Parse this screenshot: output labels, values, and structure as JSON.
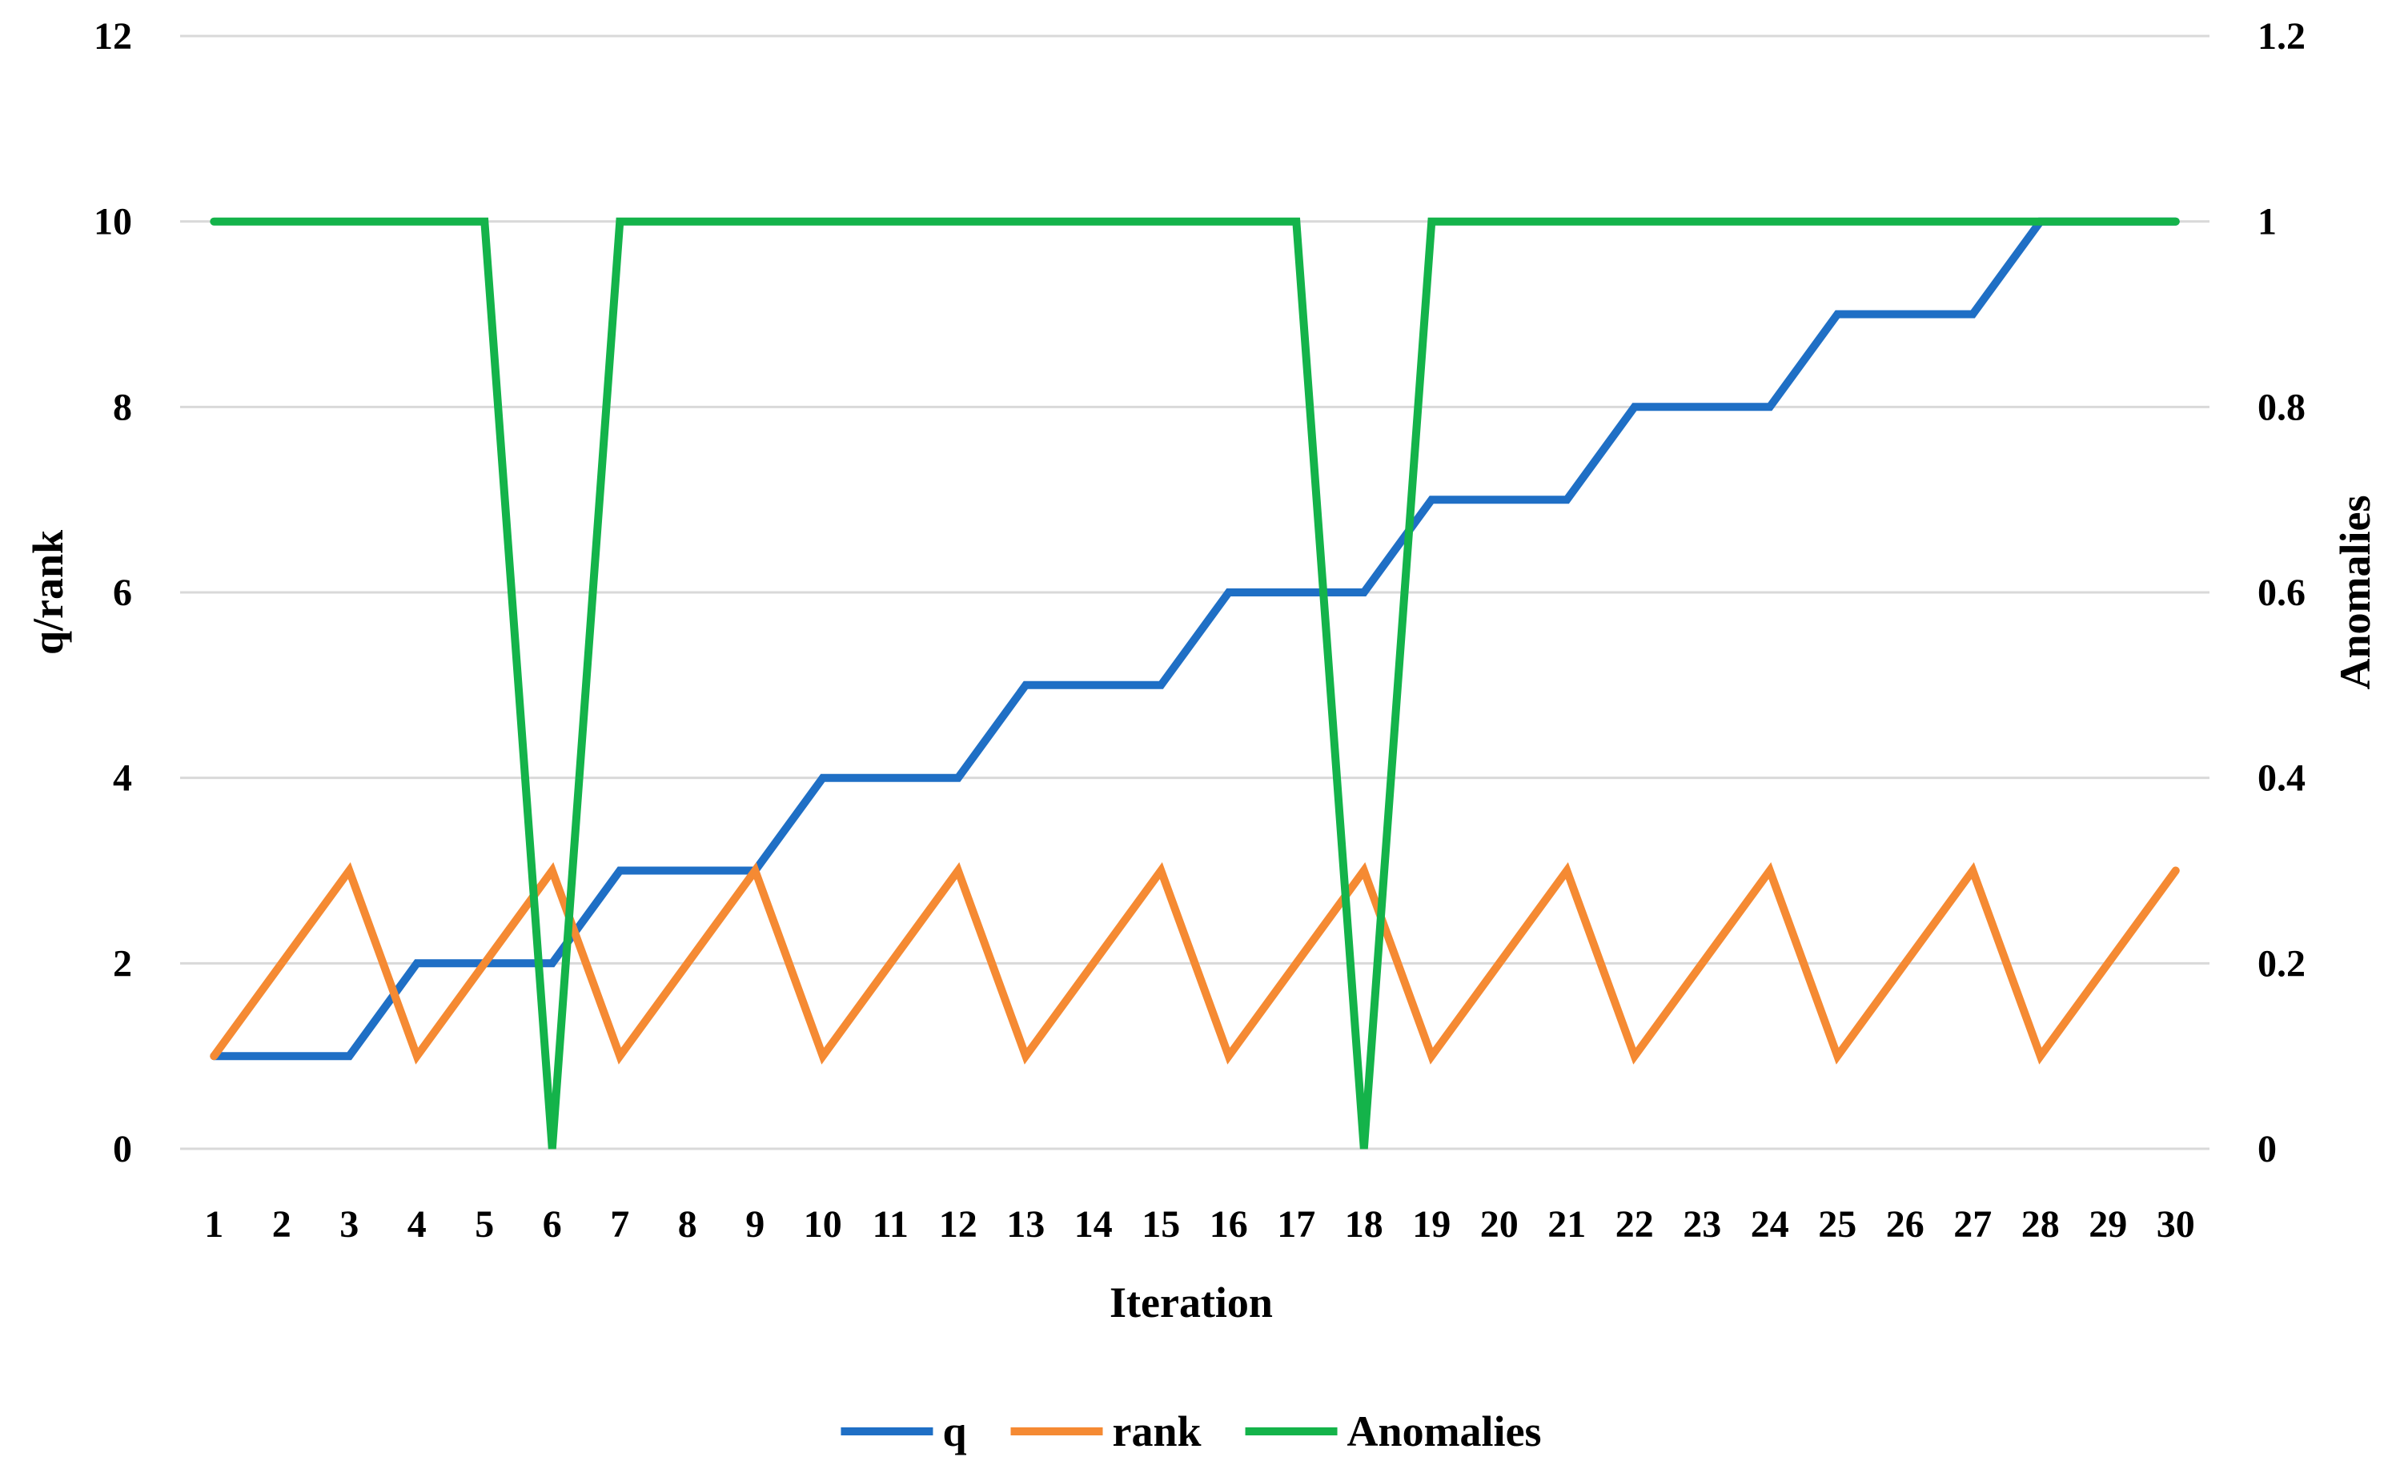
{
  "chart_data": {
    "type": "line",
    "x_label": "Iteration",
    "y_left_label": "q/rank",
    "y_right_label": "Anomalies",
    "categories": [
      1,
      2,
      3,
      4,
      5,
      6,
      7,
      8,
      9,
      10,
      11,
      12,
      13,
      14,
      15,
      16,
      17,
      18,
      19,
      20,
      21,
      22,
      23,
      24,
      25,
      26,
      27,
      28,
      29,
      30
    ],
    "y_left_range": [
      0,
      12
    ],
    "y_left_ticks": [
      0,
      2,
      4,
      6,
      8,
      10,
      12
    ],
    "y_right_range": [
      0,
      1.2
    ],
    "y_right_ticks": [
      "0",
      "0.2",
      "0.4",
      "0.6",
      "0.8",
      "1",
      "1.2"
    ],
    "grid": "horizontal",
    "legend_position": "bottom",
    "series": [
      {
        "name": "q",
        "axis": "left",
        "color": "#1f6fc5",
        "values": [
          1,
          1,
          1,
          2,
          2,
          2,
          3,
          3,
          3,
          4,
          4,
          4,
          5,
          5,
          5,
          6,
          6,
          6,
          7,
          7,
          7,
          8,
          8,
          8,
          9,
          9,
          9,
          10,
          10,
          10
        ]
      },
      {
        "name": "rank",
        "axis": "left",
        "color": "#f58a33",
        "values": [
          1,
          2,
          3,
          1,
          2,
          3,
          1,
          2,
          3,
          1,
          2,
          3,
          1,
          2,
          3,
          1,
          2,
          3,
          1,
          2,
          3,
          1,
          2,
          3,
          1,
          2,
          3,
          1,
          2,
          3
        ]
      },
      {
        "name": "Anomalies",
        "axis": "right",
        "color": "#14b34a",
        "values": [
          1,
          1,
          1,
          1,
          1,
          0,
          1,
          1,
          1,
          1,
          1,
          1,
          1,
          1,
          1,
          1,
          1,
          0,
          1,
          1,
          1,
          1,
          1,
          1,
          1,
          1,
          1,
          1,
          1,
          1
        ]
      }
    ]
  }
}
